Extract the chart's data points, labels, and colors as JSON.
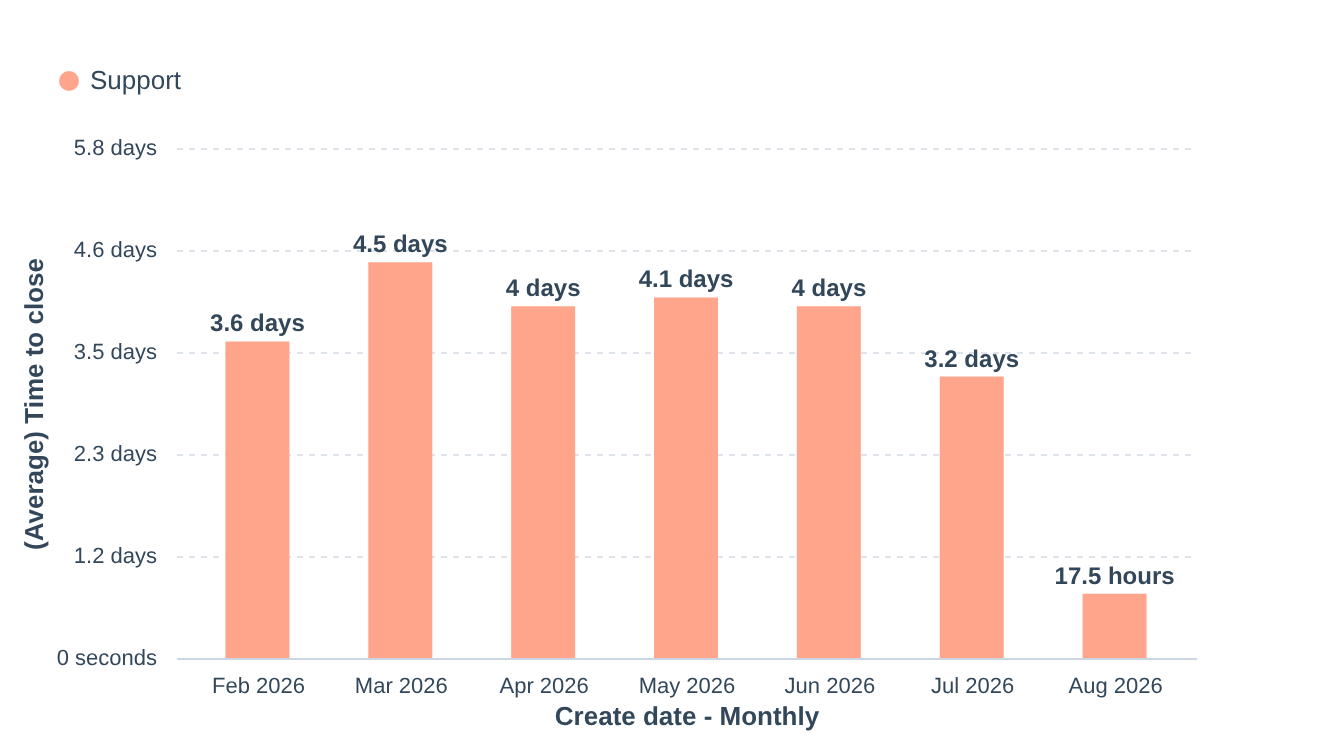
{
  "chart_data": {
    "type": "bar",
    "xlabel": "Create date - Monthly",
    "ylabel": "(Average) Time to close",
    "categories": [
      "Feb 2026",
      "Mar 2026",
      "Apr 2026",
      "May 2026",
      "Jun 2026",
      "Jul 2026",
      "Aug 2026"
    ],
    "series": [
      {
        "name": "Support",
        "color": "#ffa58c",
        "values": [
          3.6,
          4.5,
          4,
          4.1,
          4,
          3.2,
          0.73
        ]
      }
    ],
    "value_labels": [
      "3.6 days",
      "4.5 days",
      "4 days",
      "4.1 days",
      "4 days",
      "3.2 days",
      "17.5 hours"
    ],
    "ylim": [
      0,
      5.8
    ],
    "yticks": [
      {
        "value": 0,
        "label": "0 seconds"
      },
      {
        "value": 1.16,
        "label": "1.2 days"
      },
      {
        "value": 2.32,
        "label": "2.3 days"
      },
      {
        "value": 3.48,
        "label": "3.5 days"
      },
      {
        "value": 4.64,
        "label": "4.6 days"
      },
      {
        "value": 5.8,
        "label": "5.8 days"
      }
    ],
    "grid": "y",
    "legend": "top left"
  }
}
